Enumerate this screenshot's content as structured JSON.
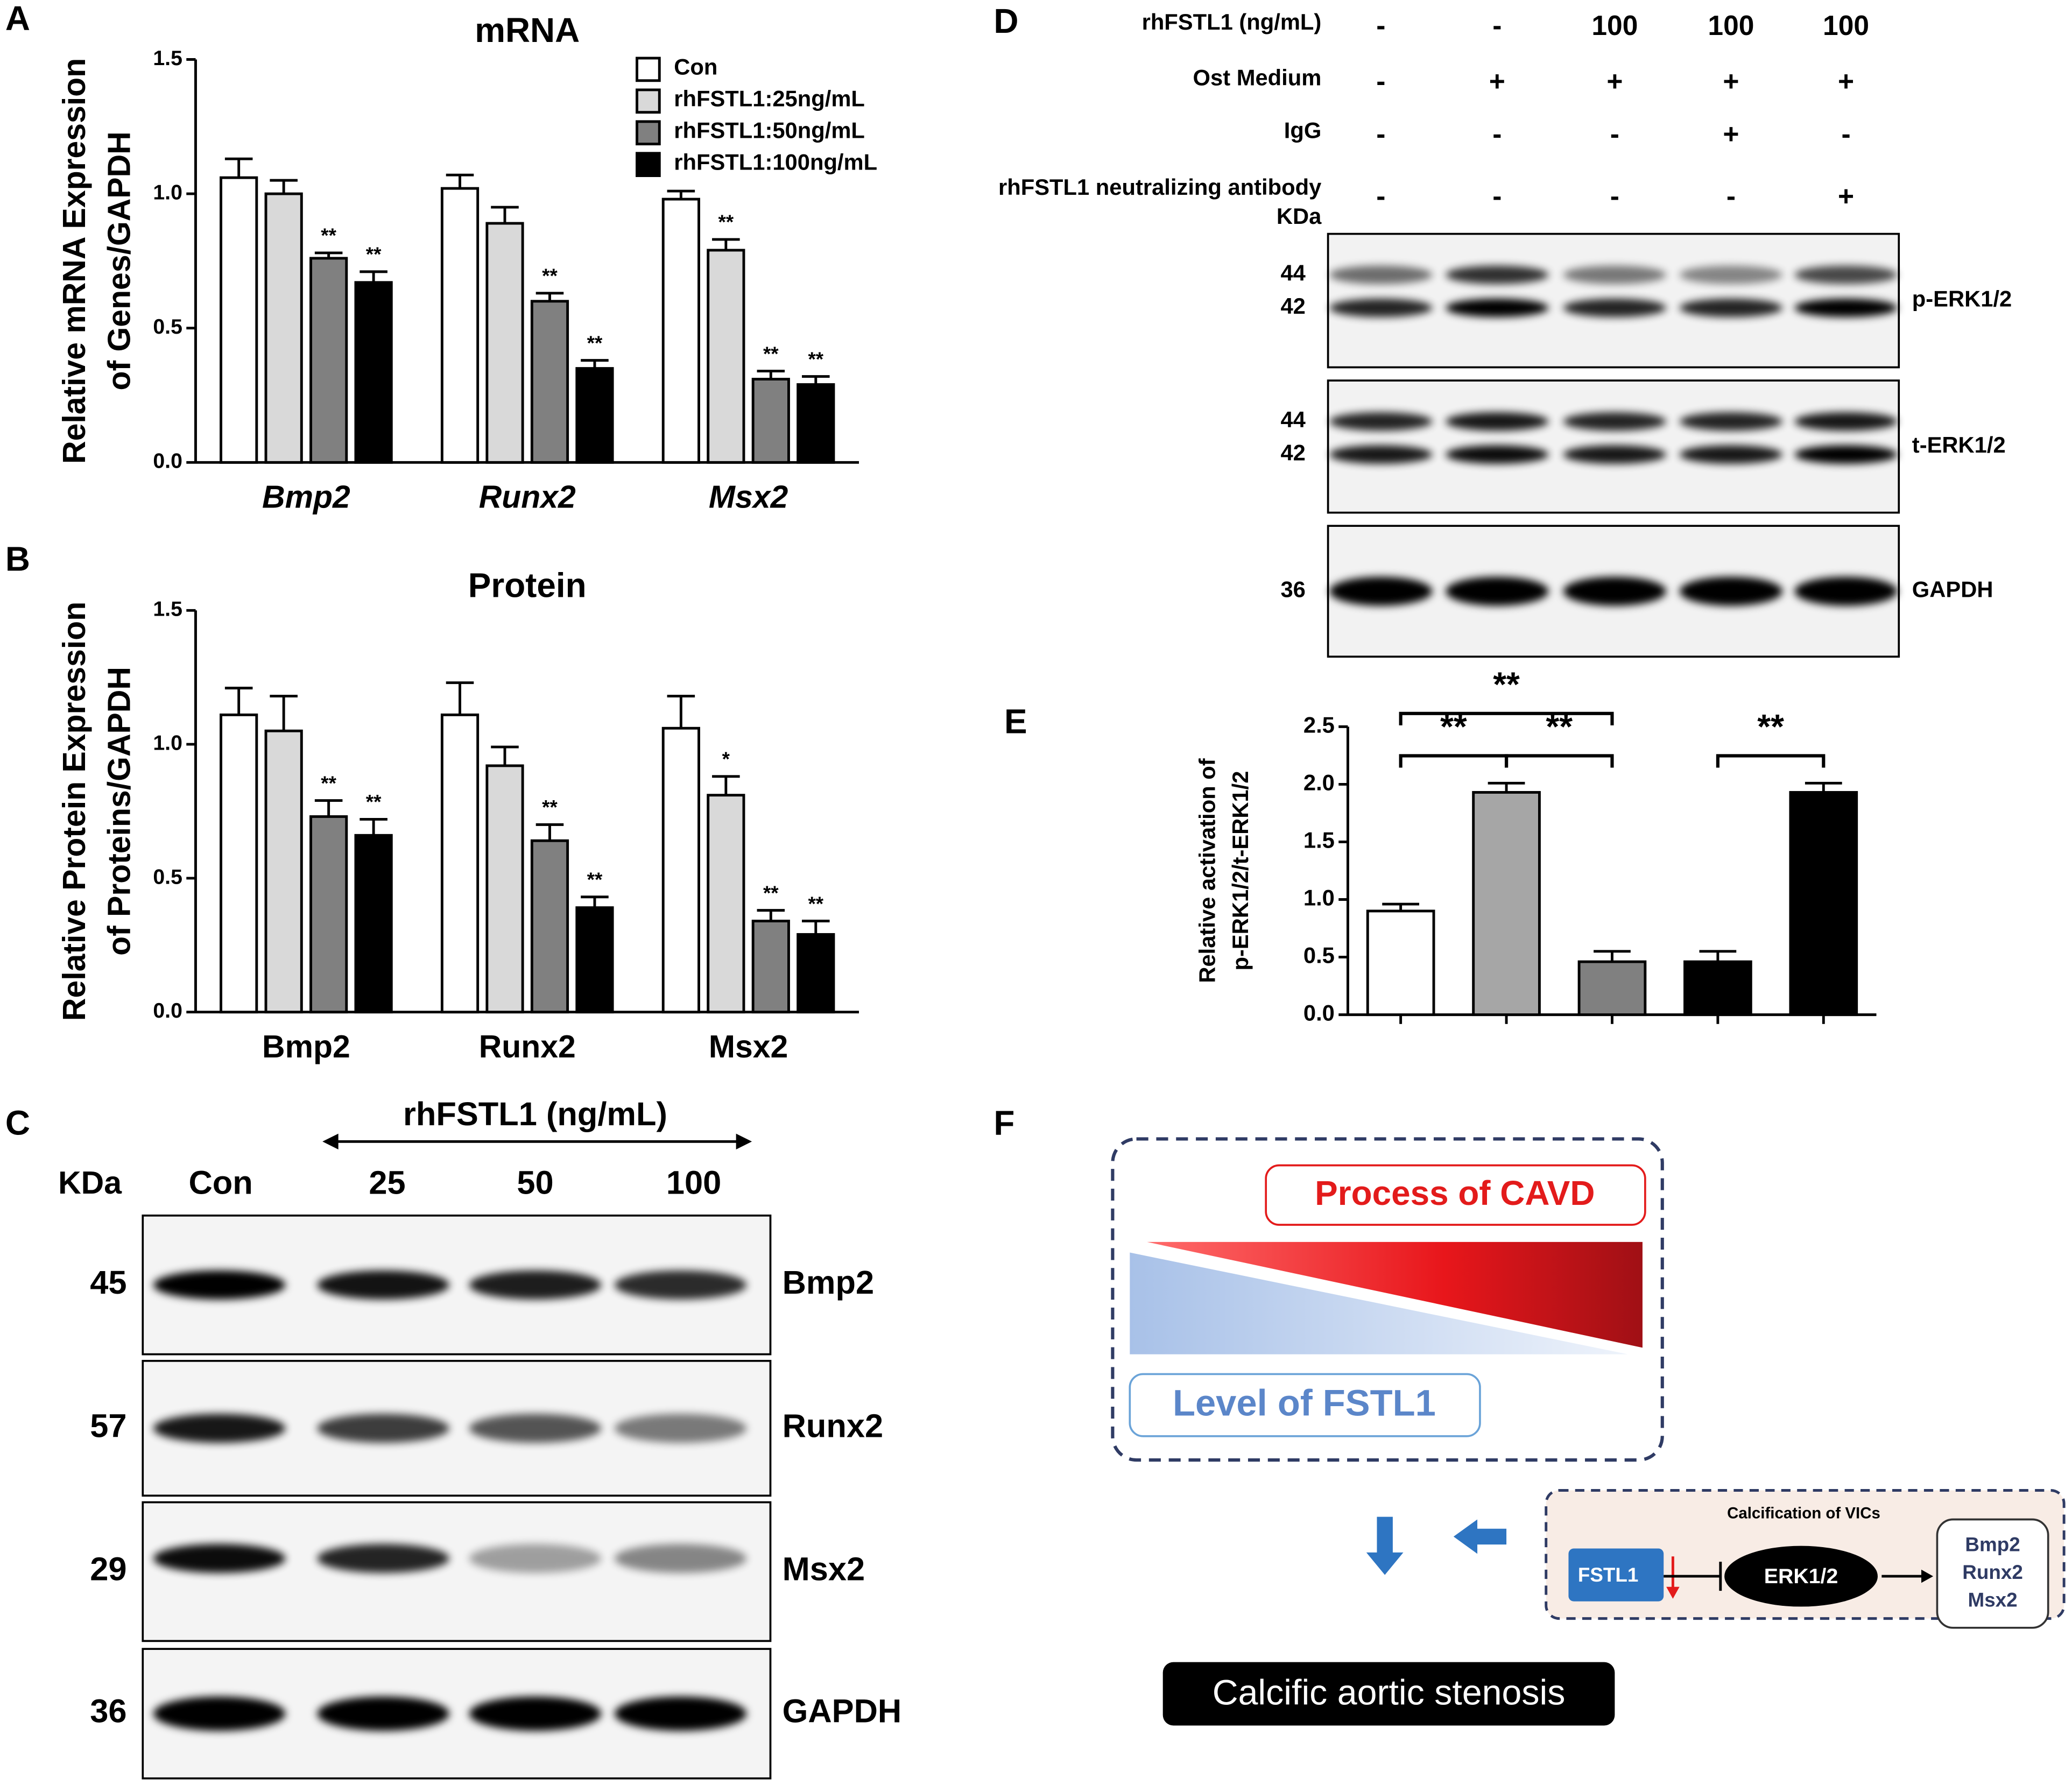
{
  "chart_data": [
    {
      "panel": "A",
      "type": "bar",
      "title": "mRNA",
      "y_label": [
        "Relative mRNA Expression",
        "of Genes/GAPDH"
      ],
      "categories": [
        "Bmp2",
        "Runx2",
        "Msx2"
      ],
      "series": [
        {
          "name": "Con",
          "color": "#ffffff",
          "values": [
            1.06,
            1.02,
            0.98
          ],
          "errors": [
            0.07,
            0.05,
            0.03
          ],
          "annotations": [
            null,
            null,
            null
          ]
        },
        {
          "name": "rhFSTL1:25ng/mL",
          "color": "#d9d9d9",
          "values": [
            1.0,
            0.89,
            0.79
          ],
          "errors": [
            0.05,
            0.06,
            0.04
          ],
          "annotations": [
            null,
            null,
            "**"
          ]
        },
        {
          "name": "rhFSTL1:50ng/mL",
          "color": "#808080",
          "values": [
            0.76,
            0.6,
            0.31
          ],
          "errors": [
            0.02,
            0.03,
            0.03
          ],
          "annotations": [
            "**",
            "**",
            "**"
          ]
        },
        {
          "name": "rhFSTL1:100ng/mL",
          "color": "#000000",
          "values": [
            0.67,
            0.35,
            0.29
          ],
          "errors": [
            0.04,
            0.03,
            0.03
          ],
          "annotations": [
            "**",
            "**",
            "**"
          ]
        }
      ],
      "ylim": [
        0,
        1.5
      ],
      "yticks": [
        {
          "value": 0,
          "label": "0.0"
        },
        {
          "value": 0.5,
          "label": "0.5"
        },
        {
          "value": 1,
          "label": "1.0"
        },
        {
          "value": 1.5,
          "label": "1.5"
        }
      ],
      "legend": "upper right"
    },
    {
      "panel": "B",
      "type": "bar",
      "title": "Protein",
      "y_label": [
        "Relative Protein Expression",
        "of Proteins/GAPDH"
      ],
      "categories": [
        "Bmp2",
        "Runx2",
        "Msx2"
      ],
      "series": [
        {
          "name": "Con",
          "color": "#ffffff",
          "values": [
            1.11,
            1.11,
            1.06
          ],
          "errors": [
            0.1,
            0.12,
            0.12
          ],
          "annotations": [
            null,
            null,
            null
          ]
        },
        {
          "name": "rhFSTL1:25ng/mL",
          "color": "#d9d9d9",
          "values": [
            1.05,
            0.92,
            0.81
          ],
          "errors": [
            0.13,
            0.07,
            0.07
          ],
          "annotations": [
            null,
            null,
            "*"
          ]
        },
        {
          "name": "rhFSTL1:50ng/mL",
          "color": "#808080",
          "values": [
            0.73,
            0.64,
            0.34
          ],
          "errors": [
            0.06,
            0.06,
            0.04
          ],
          "annotations": [
            "**",
            "**",
            "**"
          ]
        },
        {
          "name": "rhFSTL1:100ng/mL",
          "color": "#000000",
          "values": [
            0.66,
            0.39,
            0.29
          ],
          "errors": [
            0.06,
            0.04,
            0.05
          ],
          "annotations": [
            "**",
            "**",
            "**"
          ]
        }
      ],
      "ylim": [
        0,
        1.5
      ],
      "yticks": [
        {
          "value": 0,
          "label": "0.0"
        },
        {
          "value": 0.5,
          "label": "0.5"
        },
        {
          "value": 1,
          "label": "1.0"
        },
        {
          "value": 1.5,
          "label": "1.5"
        }
      ]
    },
    {
      "panel": "E",
      "type": "bar",
      "y_label": [
        "Relative activation of",
        "p-ERK1/2/t-ERK1/2"
      ],
      "categories": [
        null,
        null,
        null,
        null,
        null
      ],
      "values": [
        0.9,
        1.93,
        0.46,
        0.46,
        1.93
      ],
      "errors": [
        0.06,
        0.08,
        0.09,
        0.09,
        0.08
      ],
      "colors": [
        "#ffffff",
        "#a6a6a6",
        "#808080",
        "#000000",
        "#000000"
      ],
      "ylim": [
        0,
        2.5
      ],
      "yticks": [
        {
          "value": 0,
          "label": "0.0"
        },
        {
          "value": 0.5,
          "label": "0.5"
        },
        {
          "value": 1,
          "label": "1.0"
        },
        {
          "value": 1.5,
          "label": "1.5"
        },
        {
          "value": 2,
          "label": "2.0"
        },
        {
          "value": 2.5,
          "label": "2.5"
        }
      ],
      "significance": [
        "**",
        "**",
        "**",
        "**"
      ]
    }
  ],
  "blot_c": {
    "panel": "C",
    "treatment": "rhFSTL1 (ng/mL)",
    "kda_header": "KDa",
    "lanes": [
      "Con",
      "25",
      "50",
      "100"
    ],
    "rows": [
      {
        "kda": "45",
        "protein": "Bmp2"
      },
      {
        "kda": "57",
        "protein": "Runx2"
      },
      {
        "kda": "29",
        "protein": "Msx2"
      },
      {
        "kda": "36",
        "protein": "GAPDH"
      }
    ]
  },
  "blot_d": {
    "panel": "D",
    "conditions": [
      {
        "label": "rhFSTL1 (ng/mL)",
        "lanes": [
          "-",
          "-",
          "100",
          "100",
          "100"
        ]
      },
      {
        "label": "Ost Medium",
        "lanes": [
          "-",
          "+",
          "+",
          "+",
          "+"
        ]
      },
      {
        "label": "IgG",
        "lanes": [
          "-",
          "-",
          "-",
          "+",
          "-"
        ]
      },
      {
        "label": "rhFSTL1 neutralizing antibody",
        "lanes": [
          "-",
          "-",
          "-",
          "-",
          "+"
        ]
      }
    ],
    "kda_header": "KDa",
    "rows": [
      {
        "kda": [
          "44",
          "42"
        ],
        "protein": "p-ERK1/2"
      },
      {
        "kda": [
          "44",
          "42"
        ],
        "protein": "t-ERK1/2"
      },
      {
        "kda": [
          "36"
        ],
        "protein": "GAPDH"
      }
    ]
  },
  "diagram_f": {
    "panel": "F",
    "process": "Process of CAVD",
    "level": "Level of FSTL1",
    "pathway_title": "Calcification of VICs",
    "inhibitor": "FSTL1",
    "kinase": "ERK1/2",
    "targets": [
      "Bmp2",
      "Runx2",
      "Msx2"
    ],
    "outcome": "Calcific aortic stenosis"
  }
}
